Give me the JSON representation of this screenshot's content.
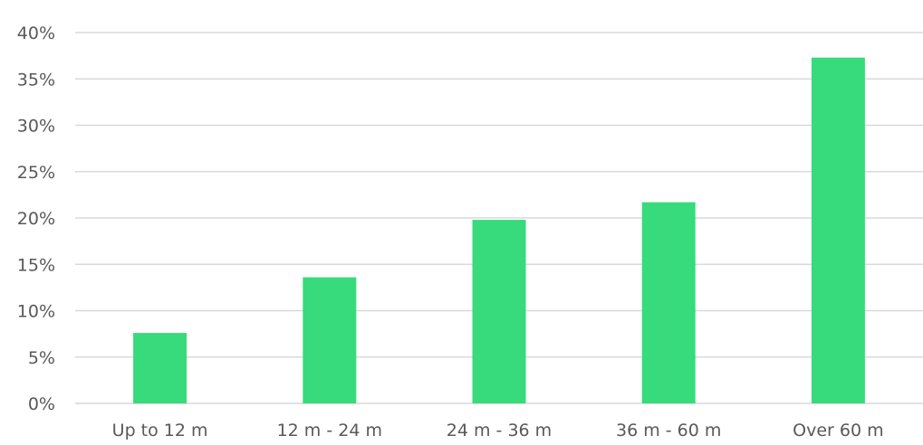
{
  "chart_data": {
    "type": "bar",
    "categories": [
      "Up to 12 m",
      "12 m - 24 m",
      "24 m - 36 m",
      "36 m - 60 m",
      "Over 60 m"
    ],
    "values": [
      7.6,
      13.6,
      19.8,
      21.7,
      37.3
    ],
    "y_ticks": [
      0,
      5,
      10,
      15,
      20,
      25,
      30,
      35,
      40
    ],
    "y_tick_labels": [
      "0%",
      "5%",
      "10%",
      "15%",
      "20%",
      "25%",
      "30%",
      "35%",
      "40%"
    ],
    "ylim": [
      0,
      40
    ],
    "grid": true,
    "legend": false,
    "title": "",
    "xlabel": "",
    "ylabel": "",
    "bar_color": "#37db7b",
    "grid_color": "#d9d9d9",
    "label_color": "#595959"
  }
}
